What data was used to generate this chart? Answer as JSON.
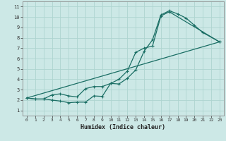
{
  "title": "",
  "xlabel": "Humidex (Indice chaleur)",
  "ylabel": "",
  "bg_color": "#cce8e6",
  "line_color": "#1a6e64",
  "grid_color": "#aed4d0",
  "axis_color": "#888888",
  "xlim": [
    -0.5,
    23.5
  ],
  "ylim": [
    0.5,
    11.5
  ],
  "xticks": [
    0,
    1,
    2,
    3,
    4,
    5,
    6,
    7,
    8,
    9,
    10,
    11,
    12,
    13,
    14,
    15,
    16,
    17,
    18,
    19,
    20,
    21,
    22,
    23
  ],
  "yticks": [
    1,
    2,
    3,
    4,
    5,
    6,
    7,
    8,
    9,
    10,
    11
  ],
  "line1_x": [
    0,
    1,
    2,
    3,
    4,
    5,
    6,
    7,
    8,
    9,
    10,
    11,
    12,
    13,
    14,
    15,
    16,
    17,
    18,
    19,
    20,
    21,
    23
  ],
  "line1_y": [
    2.2,
    2.1,
    2.1,
    2.0,
    1.9,
    1.75,
    1.8,
    1.8,
    2.4,
    2.35,
    3.6,
    3.55,
    4.1,
    4.9,
    6.7,
    7.8,
    10.2,
    10.6,
    10.3,
    9.9,
    9.2,
    8.5,
    7.6
  ],
  "line2_x": [
    0,
    1,
    2,
    3,
    4,
    5,
    6,
    7,
    8,
    9,
    10,
    11,
    12,
    13,
    14,
    15,
    16,
    17,
    23
  ],
  "line2_y": [
    2.2,
    2.1,
    2.1,
    2.5,
    2.6,
    2.4,
    2.3,
    3.1,
    3.3,
    3.3,
    3.6,
    4.0,
    4.8,
    6.6,
    7.0,
    7.2,
    10.1,
    10.5,
    7.6
  ],
  "line3_x": [
    0,
    23
  ],
  "line3_y": [
    2.2,
    7.6
  ]
}
